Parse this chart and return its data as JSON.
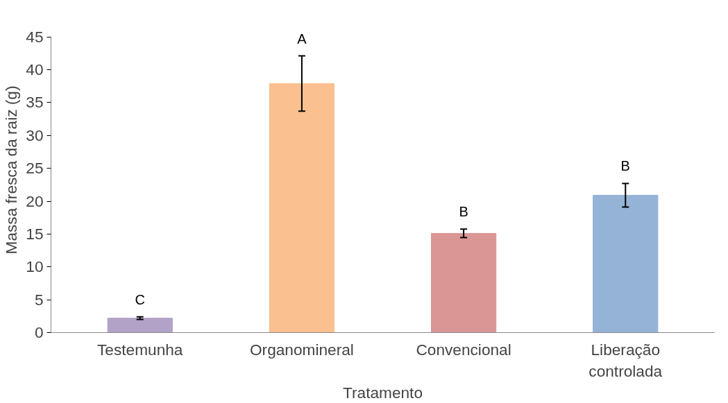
{
  "chart_data": {
    "type": "bar",
    "xlabel": "Tratamento",
    "ylabel": "Massa fresca da raiz (g)",
    "categories": [
      "Testemunha",
      "Organomineral",
      "Convencional",
      "Liberação\ncontrolada"
    ],
    "values": [
      2.2,
      37.9,
      15.1,
      20.9
    ],
    "colors": [
      "#b3a2c7",
      "#fac090",
      "#d99694",
      "#95b3d7"
    ],
    "errors": [
      0.2,
      4.2,
      0.65,
      1.8
    ],
    "annotations": [
      "C",
      "A",
      "B",
      "B"
    ],
    "ylim": [
      0,
      45
    ],
    "yticks": [
      0,
      5,
      10,
      15,
      20,
      25,
      30,
      35,
      40,
      45
    ],
    "grid": false
  }
}
